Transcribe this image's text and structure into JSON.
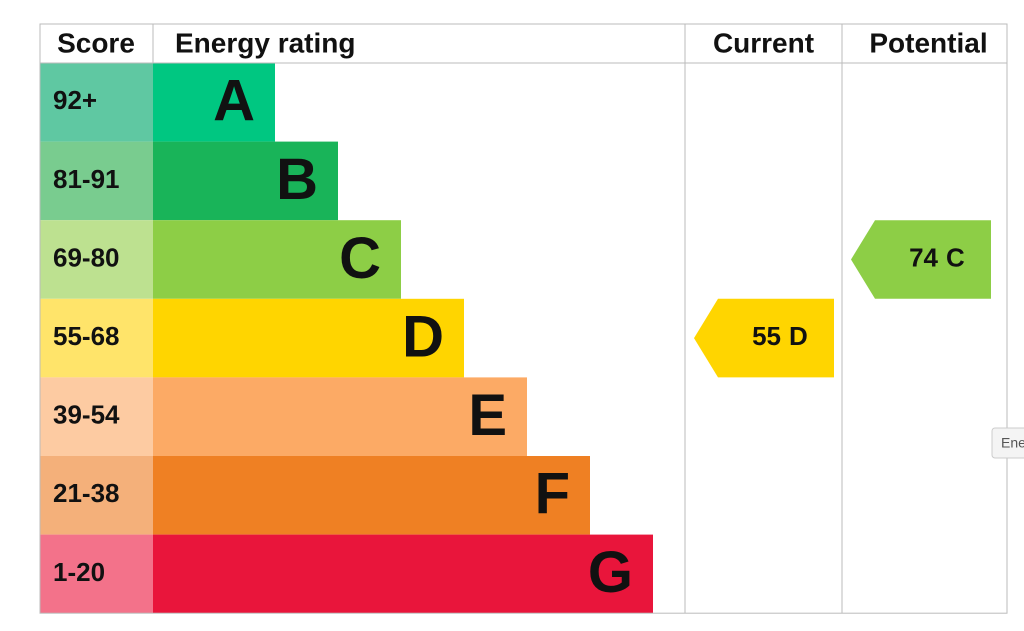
{
  "headers": {
    "score": "Score",
    "rating": "Energy rating",
    "current": "Current",
    "potential": "Potential"
  },
  "bands": [
    {
      "score": "92+",
      "letter": "A",
      "color": "#00c781",
      "score_color": "#5fc8a2"
    },
    {
      "score": "81-91",
      "letter": "B",
      "color": "#19b459",
      "score_color": "#79cc8f"
    },
    {
      "score": "69-80",
      "letter": "C",
      "color": "#8dce46",
      "score_color": "#bde190"
    },
    {
      "score": "55-68",
      "letter": "D",
      "color": "#ffd500",
      "score_color": "#ffe46a"
    },
    {
      "score": "39-54",
      "letter": "E",
      "color": "#fcaa65",
      "score_color": "#fdcba2"
    },
    {
      "score": "21-38",
      "letter": "F",
      "color": "#ef8023",
      "score_color": "#f4b07a"
    },
    {
      "score": "1-20",
      "letter": "G",
      "color": "#e9153b",
      "score_color": "#f3728a"
    }
  ],
  "current": {
    "score": 55,
    "rating": "D"
  },
  "potential": {
    "score": 74,
    "rating": "C"
  },
  "tooltip": "Ene"
}
